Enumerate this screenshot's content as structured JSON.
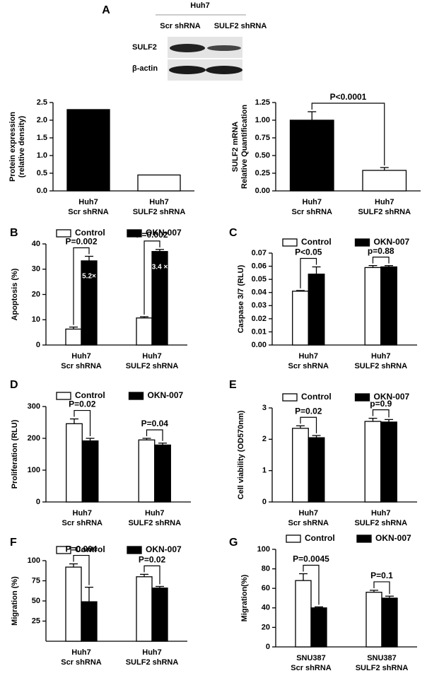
{
  "blot": {
    "panel": "A",
    "title": "Huh7",
    "lanes": [
      "Scr shRNA",
      "SULF2 shRNA"
    ],
    "rows": [
      "SULF2",
      "β-actin"
    ]
  },
  "chart_data": [
    {
      "type": "bar",
      "ylabel": [
        "Protein expression",
        "(relative density)"
      ],
      "categories": [
        [
          "Huh7",
          "Scr shRNA"
        ],
        [
          "Huh7",
          "SULF2 shRNA"
        ]
      ],
      "values": [
        2.3,
        0.45
      ],
      "colors": [
        "#000000",
        "#ffffff"
      ],
      "ylim": [
        0,
        2.5
      ],
      "yticks": [
        {
          "value": 0,
          "label": "0.0"
        },
        0.5,
        {
          "value": 1,
          "label": "1.0"
        },
        1.5,
        {
          "value": 2,
          "label": "2.0"
        },
        2.5
      ]
    },
    {
      "type": "bar",
      "ylabel": [
        "SULF2 mRNA",
        "Relative Quantification"
      ],
      "categories": [
        [
          "Huh7",
          "Scr shRNA"
        ],
        [
          "Huh7",
          "SULF2 shRNA"
        ]
      ],
      "values": [
        1.0,
        0.29
      ],
      "errors": [
        0.12,
        0.04
      ],
      "colors": [
        "#000000",
        "#ffffff"
      ],
      "p_value": "P<0.0001",
      "ylim": [
        0,
        1.25
      ],
      "yticks": [
        {
          "value": 0,
          "label": "0.00"
        },
        {
          "value": 0.25,
          "label": "0.25"
        },
        {
          "value": 0.5,
          "label": "0.50"
        },
        {
          "value": 0.75,
          "label": "0.75"
        },
        {
          "value": 1,
          "label": "1.00"
        },
        {
          "value": 1.25,
          "label": "1.25"
        }
      ]
    },
    {
      "type": "bar",
      "panel": "B",
      "ylabel": [
        "Apoptosis (%)"
      ],
      "categories": [
        [
          "Huh7",
          "Scr shRNA"
        ],
        [
          "Huh7",
          "SULF2 shRNA"
        ]
      ],
      "series": [
        {
          "name": "Control",
          "color": "#ffffff",
          "values": [
            6.3,
            10.7
          ],
          "errors": [
            0.8,
            0.5
          ]
        },
        {
          "name": "OKN-007",
          "color": "#000000",
          "values": [
            33.3,
            37.0
          ],
          "errors": [
            1.8,
            0.8
          ],
          "bar_notes": [
            "5.2×",
            "3.4 ×"
          ]
        }
      ],
      "p_values": [
        "P=0.002",
        "P=0.002"
      ],
      "ylim": [
        0,
        40
      ],
      "yticks": [
        0,
        10,
        20,
        30,
        40
      ]
    },
    {
      "type": "bar",
      "panel": "C",
      "ylabel": [
        "Caspase 3/7 (RLU)"
      ],
      "categories": [
        [
          "Huh7",
          "Scr shRNA"
        ],
        [
          "Huh7",
          "SULF2 shRNA"
        ]
      ],
      "series": [
        {
          "name": "Control",
          "color": "#ffffff",
          "values": [
            0.041,
            0.059
          ],
          "errors": [
            0.0005,
            0.0015
          ]
        },
        {
          "name": "OKN-007",
          "color": "#000000",
          "values": [
            0.054,
            0.0595
          ],
          "errors": [
            0.0055,
            0.001
          ]
        }
      ],
      "p_values": [
        "P<0.05",
        "p=0.88"
      ],
      "ylim": [
        0,
        0.07
      ],
      "yticks": [
        {
          "value": 0,
          "label": "0.00"
        },
        0.01,
        0.02,
        0.03,
        0.04,
        0.05,
        0.06,
        0.07
      ]
    },
    {
      "type": "bar",
      "panel": "D",
      "ylabel": [
        "Proliferation (RLU)"
      ],
      "categories": [
        [
          "Huh7",
          "Scr shRNA"
        ],
        [
          "Huh7",
          "SULF2 shRNA"
        ]
      ],
      "series": [
        {
          "name": "Control",
          "color": "#ffffff",
          "values": [
            246,
            195
          ],
          "errors": [
            15,
            5
          ]
        },
        {
          "name": "OKN-007",
          "color": "#000000",
          "values": [
            192,
            179
          ],
          "errors": [
            8,
            6
          ]
        }
      ],
      "p_values": [
        "P=0.02",
        "P=0.04"
      ],
      "ylim": [
        0,
        300
      ],
      "yticks": [
        0,
        100,
        200,
        300
      ]
    },
    {
      "type": "bar",
      "panel": "E",
      "ylabel": [
        "Cell viability (OD570nm)"
      ],
      "categories": [
        [
          "Huh7",
          "Scr shRNA"
        ],
        [
          "Huh7",
          "SULF2 shRNA"
        ]
      ],
      "series": [
        {
          "name": "Control",
          "color": "#ffffff",
          "values": [
            2.35,
            2.57
          ],
          "errors": [
            0.08,
            0.1
          ]
        },
        {
          "name": "OKN-007",
          "color": "#000000",
          "values": [
            2.05,
            2.55
          ],
          "errors": [
            0.07,
            0.08
          ]
        }
      ],
      "p_values": [
        "P=0.02",
        "p=0.9"
      ],
      "ylim": [
        0,
        3
      ],
      "yticks": [
        0,
        1,
        2,
        3
      ]
    },
    {
      "type": "bar",
      "panel": "F",
      "ylabel": [
        "Migration (%)"
      ],
      "categories": [
        [
          "Huh7",
          "Scr shRNA"
        ],
        [
          "Huh7",
          "SULF2 shRNA"
        ]
      ],
      "series": [
        {
          "name": "Control",
          "color": "#ffffff",
          "values": [
            92,
            80
          ],
          "errors": [
            4,
            3
          ]
        },
        {
          "name": "OKN-007",
          "color": "#000000",
          "values": [
            49,
            66
          ],
          "errors": [
            18,
            2
          ]
        }
      ],
      "p_values": [
        "P=0.004",
        "P=0.02"
      ],
      "ylim": [
        0,
        100
      ],
      "yticks": [
        25,
        50,
        75,
        100
      ]
    },
    {
      "type": "bar",
      "panel": "G",
      "ylabel": [
        "Migration(%)"
      ],
      "categories": [
        [
          "SNU387",
          "Scr shRNA"
        ],
        [
          "SNU387",
          "SULF2 shRNA"
        ]
      ],
      "series": [
        {
          "name": "Control",
          "color": "#ffffff",
          "values": [
            68,
            56
          ],
          "errors": [
            7,
            2
          ]
        },
        {
          "name": "OKN-007",
          "color": "#000000",
          "values": [
            40,
            50
          ],
          "errors": [
            1,
            2
          ]
        }
      ],
      "p_values": [
        "P=0.0045",
        "P=0.1"
      ],
      "ylim": [
        0,
        100
      ],
      "yticks": [
        0,
        20,
        40,
        60,
        80,
        100
      ]
    }
  ]
}
